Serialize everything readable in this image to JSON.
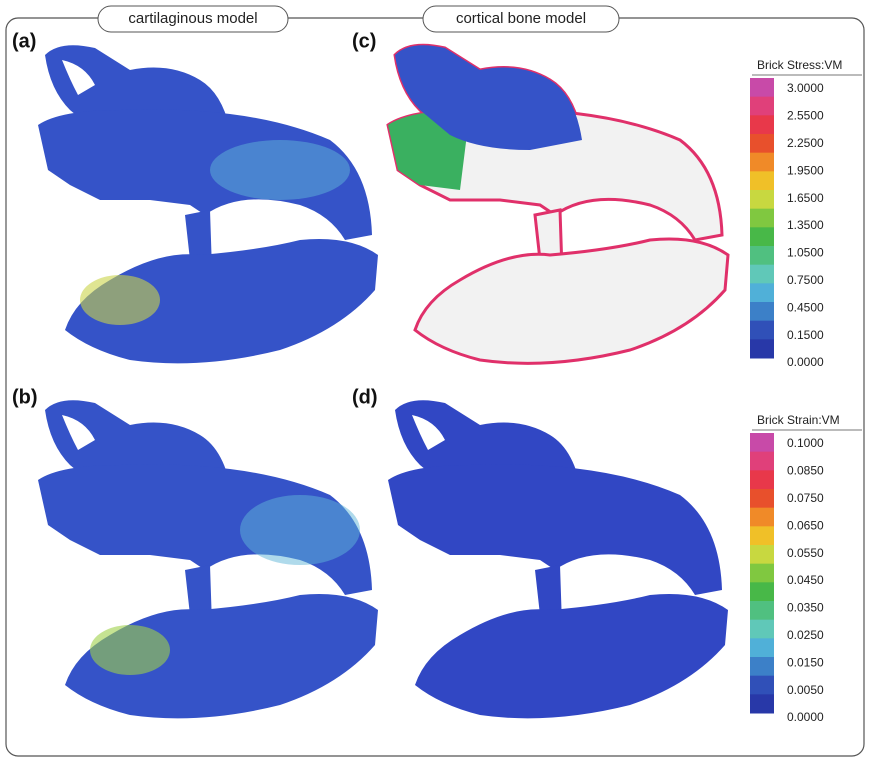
{
  "header": {
    "left_title": "cartilaginous model",
    "right_title": "cortical bone model"
  },
  "panels": {
    "a": "(a)",
    "b": "(b)",
    "c": "(c)",
    "d": "(d)"
  },
  "legends": [
    {
      "title": "Brick Stress:VM",
      "labels": [
        "3.0000",
        "2.5500",
        "2.2500",
        "1.9500",
        "1.6500",
        "1.3500",
        "1.0500",
        "0.7500",
        "0.4500",
        "0.1500",
        "0.0000"
      ]
    },
    {
      "title": "Brick Strain:VM",
      "labels": [
        "0.1000",
        "0.0850",
        "0.0750",
        "0.0650",
        "0.0550",
        "0.0450",
        "0.0350",
        "0.0250",
        "0.0150",
        "0.0050",
        "0.0000"
      ]
    }
  ]
}
